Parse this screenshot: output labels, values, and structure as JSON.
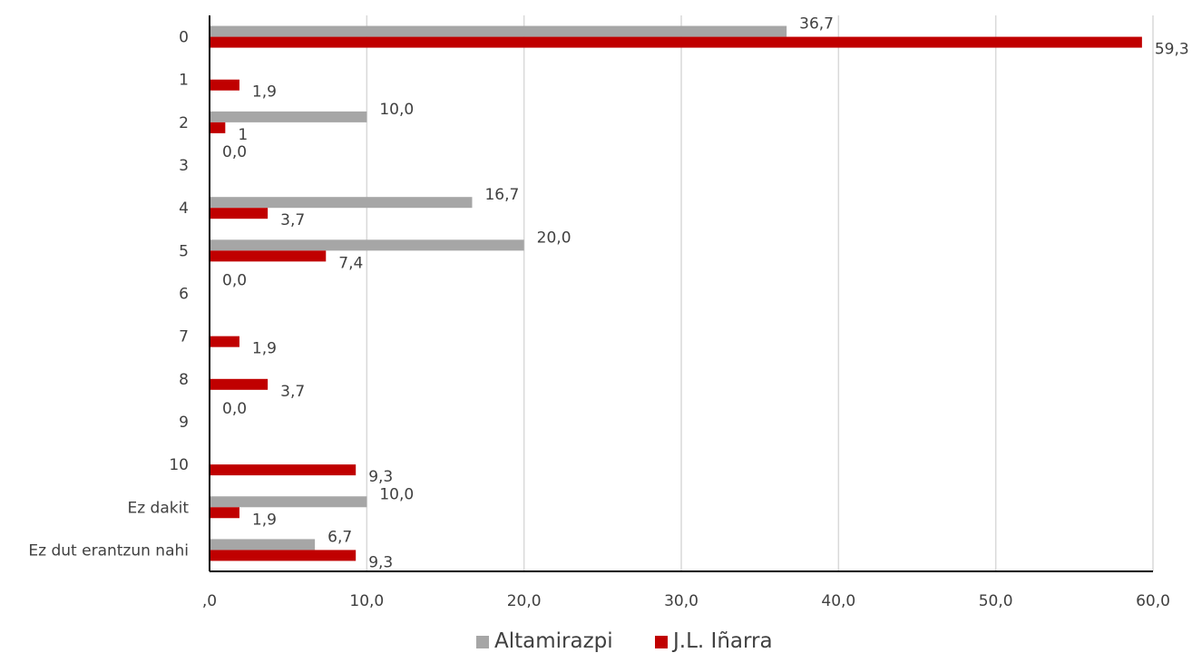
{
  "chart_data": {
    "type": "bar",
    "orientation": "horizontal",
    "categories": [
      "0",
      "1",
      "2",
      "3",
      "4",
      "5",
      "6",
      "7",
      "8",
      "9",
      "10",
      "Ez dakit",
      "Ez dut erantzun nahi"
    ],
    "series": [
      {
        "name": "Altamirazpi",
        "color": "#a6a6a6",
        "values": [
          36.7,
          0,
          10.0,
          0,
          16.7,
          20.0,
          0,
          0,
          0,
          0,
          0,
          10.0,
          6.7
        ],
        "labels": [
          "36,7",
          "",
          "10,0",
          "0,0",
          "16,7",
          "20,0",
          "0,0",
          "",
          "",
          "0,0",
          "",
          "10,0",
          "6,7"
        ]
      },
      {
        "name": "J.L. Iñarra",
        "color": "#c00000",
        "values": [
          59.3,
          1.9,
          1.0,
          0,
          3.7,
          7.4,
          0,
          1.9,
          3.7,
          0,
          9.3,
          1.9,
          9.3
        ],
        "labels": [
          "59,3",
          "1,9",
          "1",
          "",
          "3,7",
          "7,4",
          "",
          "1,9",
          "3,7",
          "",
          "9,3",
          "1,9",
          "9,3"
        ]
      }
    ],
    "x_ticks": [
      ",0",
      "10,0",
      "20,0",
      "30,0",
      "40,0",
      "50,0",
      "60,0"
    ],
    "xlim": [
      0,
      60
    ],
    "grid": true,
    "legend_position": "bottom"
  }
}
